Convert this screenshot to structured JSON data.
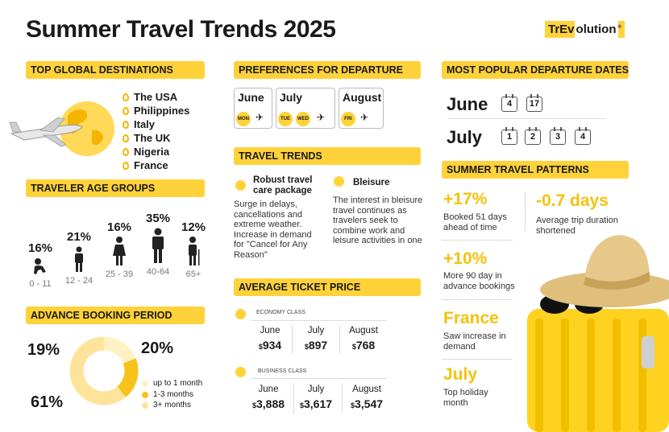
{
  "title": "Summer Travel Trends 2025",
  "logo": {
    "part1": "TrEv",
    "part2": "olution",
    "mark": "®"
  },
  "sections": {
    "destinations": "TOP GLOBAL DESTINATIONS",
    "departure": "PREFERENCES FOR DEPARTURE",
    "popular_dates": "MOST POPULAR DEPARTURE DATES",
    "age": "TRAVELER AGE GROUPS",
    "trends": "TRAVEL TRENDS",
    "patterns": "SUMMER TRAVEL PATTERNS",
    "booking": "ADVANCE BOOKING PERIOD",
    "ticket": "AVERAGE TICKET PRICE"
  },
  "destinations": [
    "The USA",
    "Philippines",
    "Italy",
    "The UK",
    "Nigeria",
    "France"
  ],
  "age_groups": [
    {
      "pct": "16%",
      "label": "0 - 11"
    },
    {
      "pct": "21%",
      "label": "12 - 24"
    },
    {
      "pct": "16%",
      "label": "25 - 39"
    },
    {
      "pct": "35%",
      "label": "40-64"
    },
    {
      "pct": "12%",
      "label": "65+"
    }
  ],
  "departure_prefs": [
    {
      "month": "June",
      "days": [
        "MON"
      ]
    },
    {
      "month": "July",
      "days": [
        "TUE",
        "WED"
      ]
    },
    {
      "month": "August",
      "days": [
        "FRI"
      ]
    }
  ],
  "popular_dates": [
    {
      "month": "June",
      "days": [
        "4",
        "17"
      ]
    },
    {
      "month": "July",
      "days": [
        "1",
        "2",
        "3",
        "4"
      ]
    }
  ],
  "trends": [
    {
      "title": "Robust travel care package",
      "body": "Surge in delays, cancellations and extreme weather. Increase in demand for \"Cancel for Any Reason\""
    },
    {
      "title": "Bleisure",
      "body": "The interest in bleisure travel continues as travelers seek to combine work and leisure activities in one"
    }
  ],
  "ticket": {
    "economy_label": "ECONOMY CLASS",
    "business_label": "BUSINESS CLASS",
    "months": [
      "June",
      "July",
      "August"
    ],
    "currency": "$",
    "economy": [
      "934",
      "897",
      "768"
    ],
    "business": [
      "3,888",
      "3,617",
      "3,547"
    ]
  },
  "booking": {
    "pcts": [
      "19%",
      "20%",
      "61%"
    ],
    "legend": [
      "up to 1 month",
      "1-3 months",
      "3+ months"
    ],
    "values": [
      19,
      20,
      61
    ],
    "colors": [
      "#fff1c4",
      "#f7c31a",
      "#fde49a"
    ]
  },
  "patterns": [
    {
      "value": "+17%",
      "text": "Booked 51 days ahead of time"
    },
    {
      "value": "-0.7 days",
      "text": "Average trip duration shortened"
    },
    {
      "value": "+10%",
      "text": "More 90 day in advance bookings"
    },
    {
      "value": "France",
      "text": "Saw increase in demand"
    },
    {
      "value": "July",
      "text": "Top holiday month"
    }
  ],
  "colors": {
    "accent": "#ffd23a",
    "accent_dark": "#f4c20d"
  }
}
